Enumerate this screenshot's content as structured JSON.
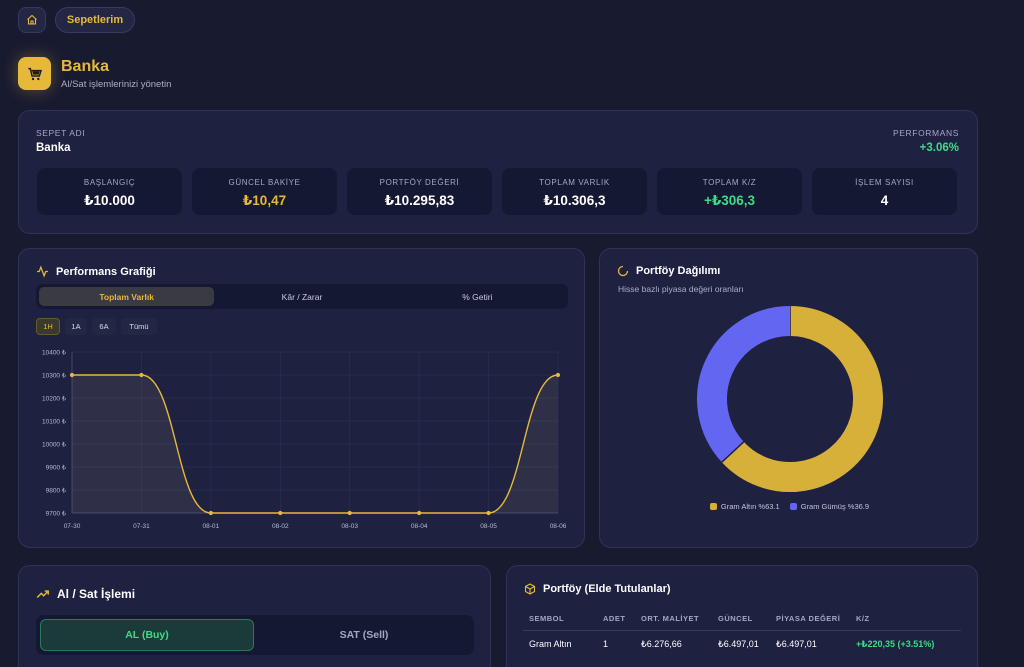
{
  "nav": {
    "basket_label": "Sepetlerim",
    "home_icon": "home-icon"
  },
  "header": {
    "title": "Banka",
    "subtitle": "Al/Sat işlemlerinizi yönetin",
    "icon": "cart-icon"
  },
  "summary": {
    "basket_name_label": "SEPET ADI",
    "basket_name": "Banka",
    "performance_label": "PERFORMANS",
    "performance_value": "+3.06%",
    "stats": [
      {
        "label": "BAŞLANGIÇ",
        "value": "₺10.000"
      },
      {
        "label": "GÜNCEL BAKİYE",
        "value": "₺10,47"
      },
      {
        "label": "PORTFÖY DEĞERİ",
        "value": "₺10.295,83"
      },
      {
        "label": "TOPLAM VARLIK",
        "value": "₺10.306,3"
      },
      {
        "label": "TOPLAM K/Z",
        "value": "+₺306,3"
      },
      {
        "label": "İŞLEM SAYISI",
        "value": "4"
      }
    ]
  },
  "performance_chart": {
    "title": "Performans Grafiği",
    "tabs": [
      "Toplam Varlık",
      "Kâr / Zarar",
      "% Getiri"
    ],
    "ranges": [
      "1H",
      "1A",
      "6A",
      "Tümü"
    ]
  },
  "portfolio_distribution": {
    "title": "Portföy Dağılımı",
    "subtitle": "Hisse bazlı piyasa değeri oranları",
    "legend": [
      "Gram Altın %63.1",
      "Gram Gümüş %36.9"
    ]
  },
  "trade": {
    "title": "Al / Sat İşlemi",
    "buy_label": "AL (Buy)",
    "sell_label": "SAT (Sell)"
  },
  "holdings": {
    "title": "Portföy (Elde Tutulanlar)",
    "columns": [
      "SEMBOL",
      "ADET",
      "ORT. MALİYET",
      "GÜNCEL",
      "PİYASA DEĞERİ",
      "K/Z"
    ],
    "rows": [
      [
        "Gram Altın",
        "1",
        "₺6.276,66",
        "₺6.497,01",
        "₺6.497,01",
        "+₺220,35 (+3.51%)"
      ]
    ]
  },
  "colors": {
    "accent_gold": "#e7b93a",
    "accent_green": "#3ddc84",
    "accent_purple": "#6366f1",
    "background": "#181a30",
    "card": "#1e2140"
  },
  "chart_data": [
    {
      "type": "area",
      "x": [
        "07-30",
        "07-31",
        "08-01",
        "08-02",
        "08-03",
        "08-04",
        "08-05",
        "08-06"
      ],
      "series": [
        {
          "values": [
            10300,
            10300,
            9700,
            9700,
            9700,
            9700,
            9700,
            10300
          ]
        }
      ],
      "ylim": [
        9700,
        10400
      ],
      "yticks": [
        "10400 ₺",
        "10300 ₺",
        "10200 ₺",
        "10100 ₺",
        "10000 ₺",
        "9900 ₺",
        "9800 ₺",
        "9700 ₺"
      ],
      "grid": true
    },
    {
      "type": "pie",
      "categories": [
        "Gram Altın",
        "Gram Gümüş"
      ],
      "values": [
        63.1,
        36.9
      ],
      "colors": [
        "#d7b03a",
        "#6366f1"
      ],
      "donut": true,
      "legend_position": "bottom"
    }
  ]
}
